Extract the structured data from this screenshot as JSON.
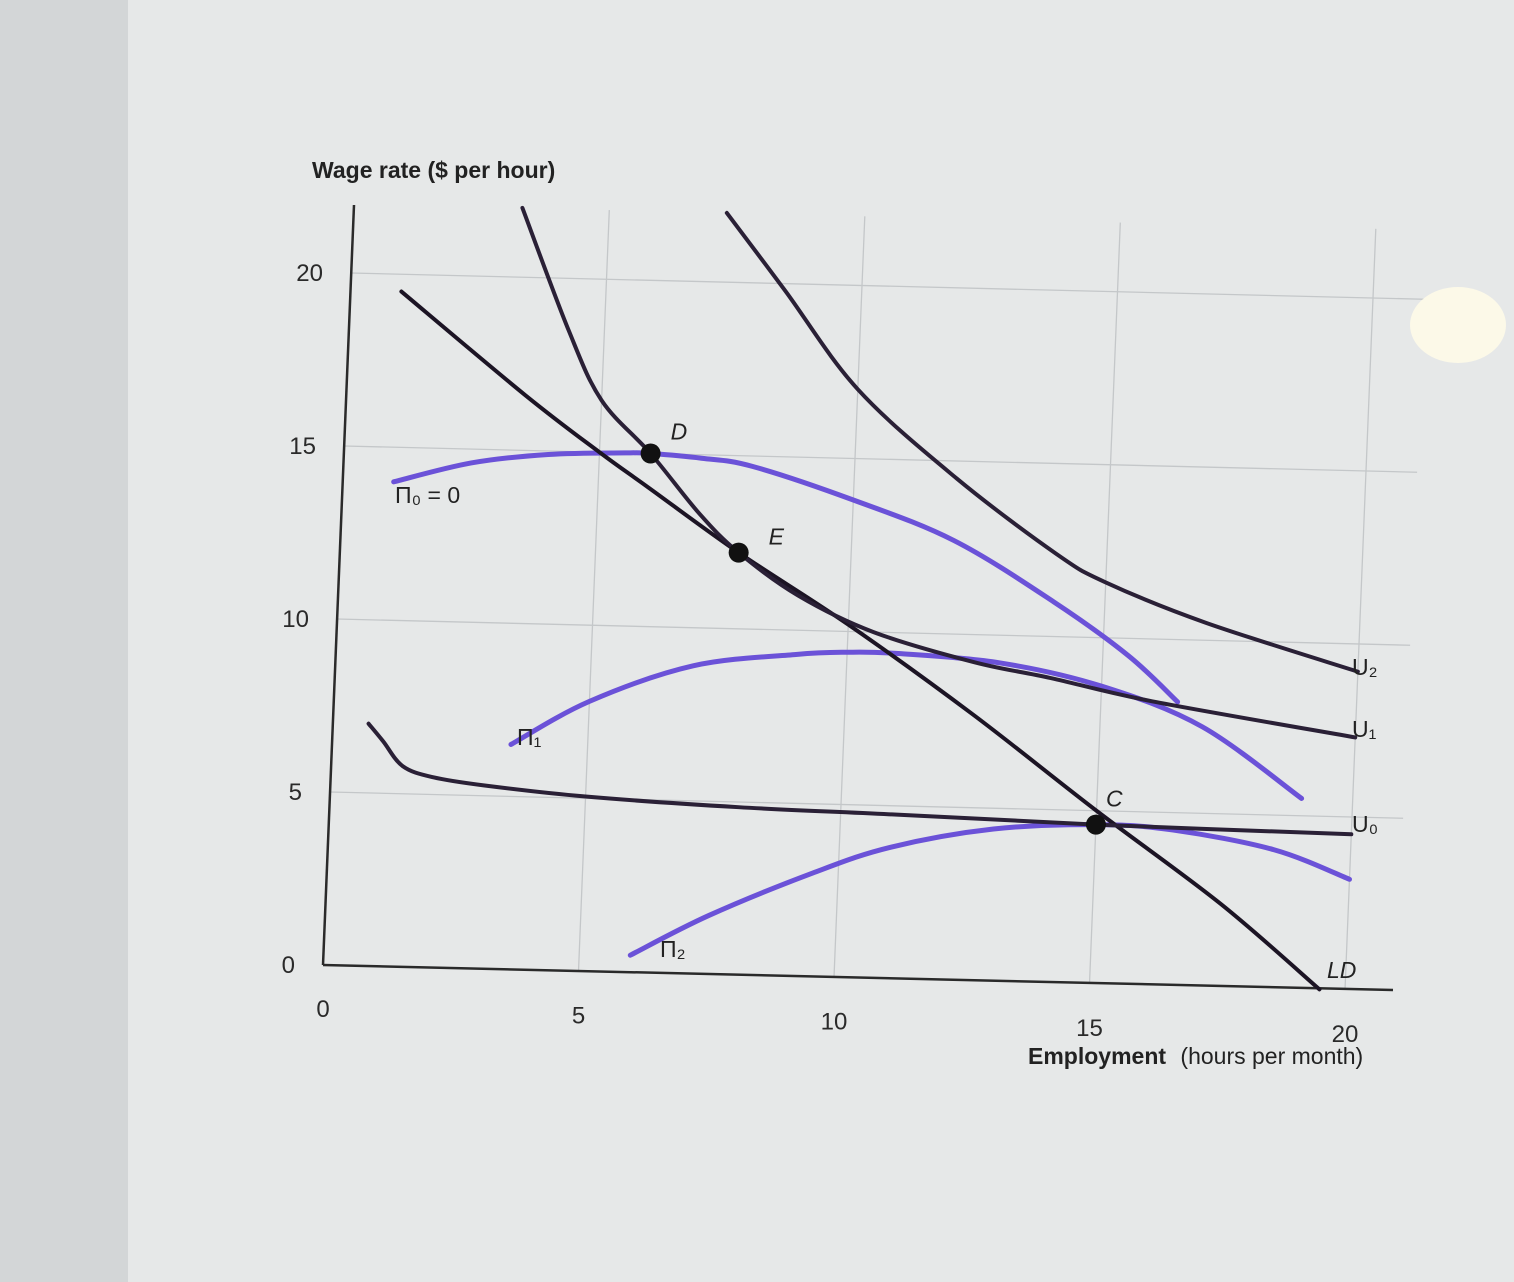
{
  "chart_data": {
    "type": "line",
    "ylabel": "Wage rate ($ per hour)",
    "xlabel_bold": "Employment",
    "xlabel_rest": "(hours per month)",
    "xlim": [
      0,
      20
    ],
    "ylim": [
      0,
      22
    ],
    "grid": true,
    "x_ticks": [
      "0",
      "5",
      "10",
      "15",
      "20"
    ],
    "y_ticks": [
      "0",
      "5",
      "10",
      "15",
      "20"
    ],
    "series": [
      {
        "name": "LD",
        "color": "#1c1424",
        "points": [
          [
            1,
            19.5
          ],
          [
            3.5,
            16.6
          ],
          [
            5,
            15.0
          ],
          [
            6,
            14.0
          ],
          [
            7.8,
            12.2
          ],
          [
            10,
            10.2
          ],
          [
            12.5,
            7.7
          ],
          [
            15,
            5.0
          ],
          [
            17.5,
            2.4
          ],
          [
            19.5,
            0.0
          ]
        ]
      },
      {
        "name": "U₂",
        "color": "#2a2036",
        "points": [
          [
            7.3,
            22
          ],
          [
            8.5,
            19.8
          ],
          [
            10,
            17.0
          ],
          [
            12,
            14.5
          ],
          [
            14,
            12.4
          ],
          [
            15,
            11.6
          ],
          [
            17,
            10.5
          ],
          [
            20,
            9.2
          ]
        ]
      },
      {
        "name": "U₁",
        "color": "#2a2036",
        "points": [
          [
            3.3,
            22
          ],
          [
            4.3,
            18.5
          ],
          [
            5,
            16.5
          ],
          [
            6,
            15.0
          ],
          [
            7,
            13.3
          ],
          [
            7.8,
            12.2
          ],
          [
            9,
            11.0
          ],
          [
            10.5,
            10.0
          ],
          [
            12.5,
            9.2
          ],
          [
            14,
            8.8
          ],
          [
            16,
            8.2
          ],
          [
            20,
            7.3
          ]
        ]
      },
      {
        "name": "U₀",
        "color": "#2a2036",
        "points": [
          [
            0.7,
            7.0
          ],
          [
            1,
            6.5
          ],
          [
            1.4,
            5.8
          ],
          [
            2,
            5.5
          ],
          [
            3,
            5.3
          ],
          [
            5,
            5.05
          ],
          [
            8,
            4.85
          ],
          [
            11,
            4.75
          ],
          [
            15,
            4.6
          ],
          [
            20,
            4.5
          ]
        ]
      },
      {
        "name": "Π₀ = 0",
        "color": "#6b52d8",
        "points": [
          [
            1,
            14.0
          ],
          [
            2.5,
            14.6
          ],
          [
            4,
            14.9
          ],
          [
            5.5,
            15.0
          ],
          [
            6,
            15.0
          ],
          [
            7,
            14.9
          ],
          [
            8,
            14.7
          ],
          [
            10,
            13.8
          ],
          [
            12,
            12.7
          ],
          [
            14,
            11.0
          ],
          [
            15.5,
            9.5
          ],
          [
            16.5,
            8.2
          ]
        ]
      },
      {
        "name": "Π₁",
        "color": "#6b52d8",
        "points": [
          [
            3.5,
            6.5
          ],
          [
            5,
            7.8
          ],
          [
            7,
            8.9
          ],
          [
            9,
            9.3
          ],
          [
            10,
            9.4
          ],
          [
            11,
            9.4
          ],
          [
            13,
            9.2
          ],
          [
            15,
            8.6
          ],
          [
            17,
            7.5
          ],
          [
            19,
            5.5
          ]
        ]
      },
      {
        "name": "Π₂",
        "color": "#6b52d8",
        "points": [
          [
            6,
            0.5
          ],
          [
            7.5,
            1.7
          ],
          [
            9.5,
            3.0
          ],
          [
            11,
            3.8
          ],
          [
            13,
            4.4
          ],
          [
            15,
            4.6
          ],
          [
            16.5,
            4.5
          ],
          [
            18.5,
            4.0
          ],
          [
            20,
            3.2
          ]
        ]
      }
    ],
    "labels_marks": [
      {
        "name": "U₂",
        "text": "U₂"
      },
      {
        "name": "U₁",
        "text": "U₁"
      },
      {
        "name": "U₀",
        "text": "U₀"
      },
      {
        "name": "LD",
        "text": "LD"
      },
      {
        "name": "Π₀ = 0",
        "text": "Π₀ = 0"
      },
      {
        "name": "Π₁",
        "text": "Π₁"
      },
      {
        "name": "Π₂",
        "text": "Π₂"
      }
    ],
    "points": [
      {
        "label": "D",
        "x": 6,
        "y": 15.0
      },
      {
        "label": "E",
        "x": 7.8,
        "y": 12.2
      },
      {
        "label": "C",
        "x": 15,
        "y": 4.6
      }
    ]
  }
}
